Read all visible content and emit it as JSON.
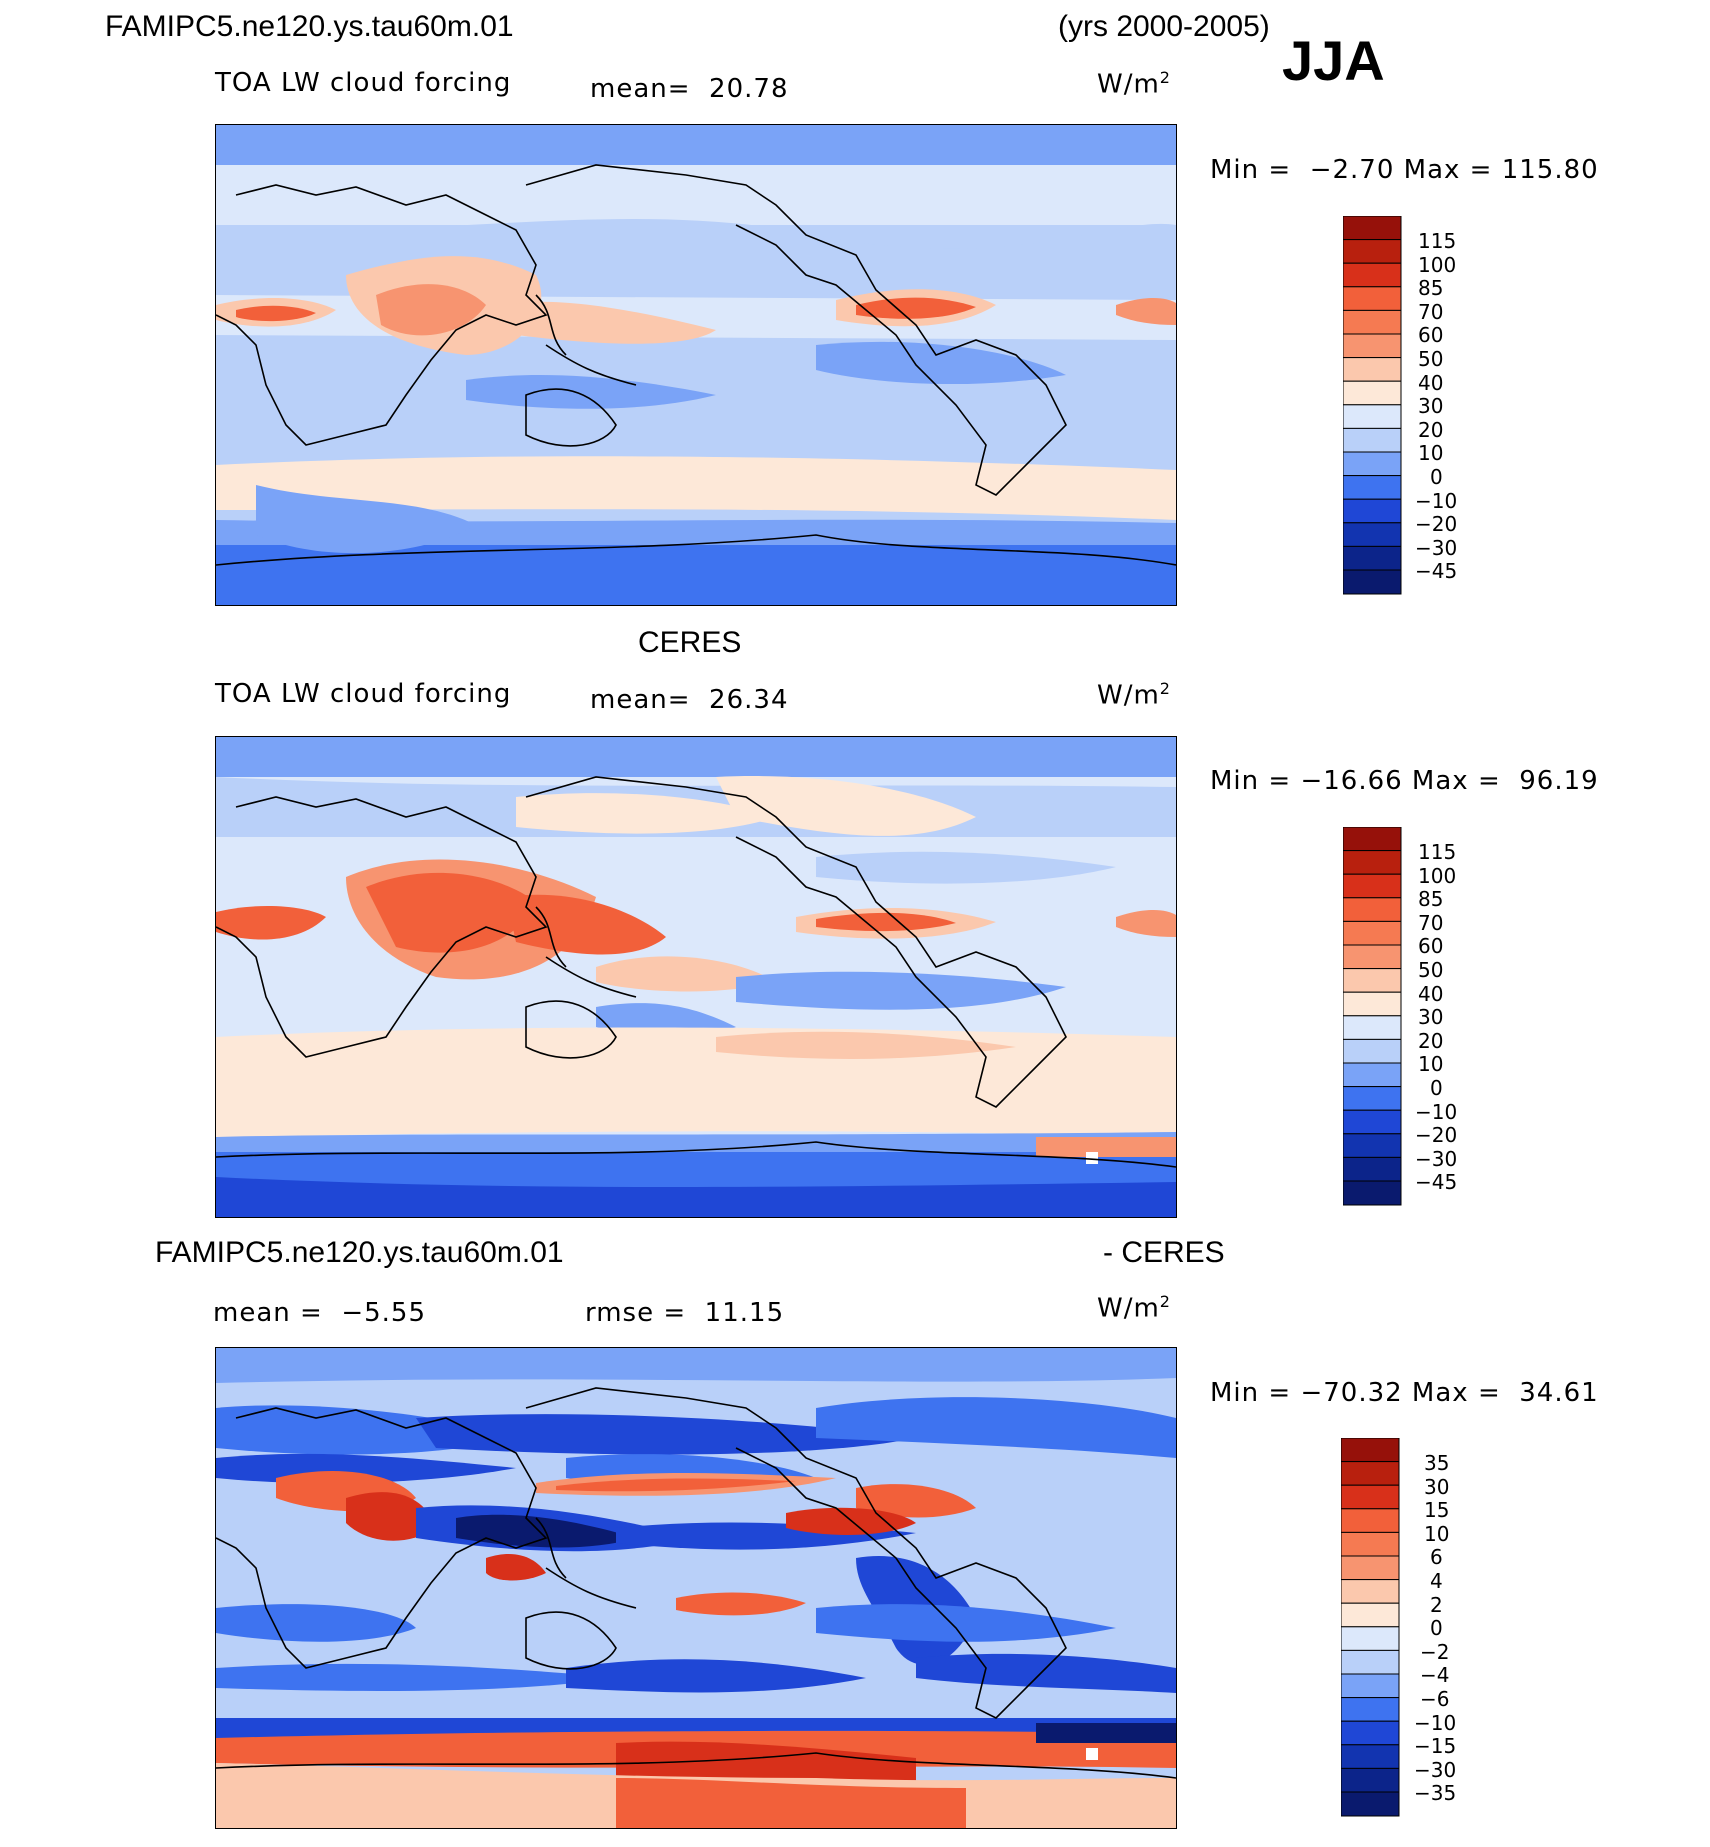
{
  "header": {
    "case_name": "FAMIPC5.ne120.ys.tau60m.01",
    "years": "(yrs 2000-2005)",
    "season": "JJA"
  },
  "colors": {
    "deep_blue": "#0a1a6e",
    "blue": "#1f47d6",
    "mid_blue": "#3e73f0",
    "light_blue": "#7aa3f7",
    "pale_blue": "#b9d0f9",
    "very_pale_blue": "#dce8fb",
    "cream": "#fde8d8",
    "peach": "#fbc8ad",
    "salmon": "#f79470",
    "orange": "#f2603a",
    "red": "#d8301a",
    "dark_red": "#96110a"
  },
  "panels": [
    {
      "id": "model",
      "variable": "TOA LW cloud forcing",
      "mean_text": "mean=  20.78",
      "units": "W/m",
      "units_sup": "2",
      "minmax": "Min =  −2.70 Max = 115.80",
      "colorbar_labels": [
        "115",
        "100",
        "85",
        "70",
        "60",
        "50",
        "40",
        "30",
        "20",
        "10",
        "0",
        "−10",
        "−20",
        "−30",
        "−45"
      ]
    },
    {
      "id": "obs",
      "title": "CERES",
      "variable": "TOA LW cloud forcing",
      "mean_text": "mean=  26.34",
      "units": "W/m",
      "units_sup": "2",
      "minmax": "Min = −16.66 Max =  96.19",
      "colorbar_labels": [
        "115",
        "100",
        "85",
        "70",
        "60",
        "50",
        "40",
        "30",
        "20",
        "10",
        "0",
        "−10",
        "−20",
        "−30",
        "−45"
      ]
    },
    {
      "id": "diff",
      "title_left": "FAMIPC5.ne120.ys.tau60m.01",
      "title_right": "- CERES",
      "mean_text": "mean =  −5.55",
      "rmse_text": "rmse =  11.15",
      "units": "W/m",
      "units_sup": "2",
      "minmax": "Min = −70.32 Max =  34.61",
      "colorbar_labels": [
        "35",
        "30",
        "15",
        "10",
        "6",
        "4",
        "2",
        "0",
        "−2",
        "−4",
        "−6",
        "−10",
        "−15",
        "−30",
        "−35"
      ]
    }
  ]
}
